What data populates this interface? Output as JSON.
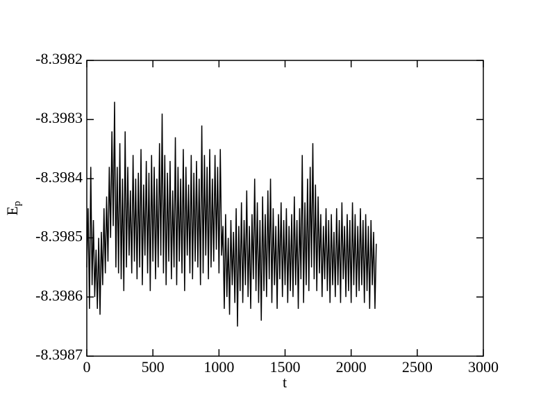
{
  "chart_data": {
    "type": "line",
    "xlabel": "t",
    "ylabel": "E",
    "ylabel_subscript": "p",
    "color": "#000000",
    "xlim": [
      0,
      3000
    ],
    "xticks": [
      0,
      500,
      1000,
      1500,
      2000,
      2500,
      3000
    ],
    "ylim": [
      -8.3987,
      -8.3982
    ],
    "yticks": [
      -8.3987,
      -8.3986,
      -8.3985,
      -8.3984,
      -8.3983,
      -8.3982
    ],
    "grid": false,
    "x": [
      0,
      10,
      20,
      30,
      40,
      50,
      60,
      70,
      80,
      90,
      100,
      110,
      120,
      130,
      140,
      150,
      160,
      170,
      180,
      190,
      200,
      210,
      220,
      230,
      240,
      250,
      260,
      270,
      280,
      290,
      300,
      310,
      320,
      330,
      340,
      350,
      360,
      370,
      380,
      390,
      400,
      410,
      420,
      430,
      440,
      450,
      460,
      470,
      480,
      490,
      500,
      510,
      520,
      530,
      540,
      550,
      560,
      570,
      580,
      590,
      600,
      610,
      620,
      630,
      640,
      650,
      660,
      670,
      680,
      690,
      700,
      710,
      720,
      730,
      740,
      750,
      760,
      770,
      780,
      790,
      800,
      810,
      820,
      830,
      840,
      850,
      860,
      870,
      880,
      890,
      900,
      910,
      920,
      930,
      940,
      950,
      960,
      970,
      980,
      990,
      1000,
      1010,
      1020,
      1030,
      1040,
      1050,
      1060,
      1070,
      1080,
      1090,
      1100,
      1110,
      1120,
      1130,
      1140,
      1150,
      1160,
      1170,
      1180,
      1190,
      1200,
      1210,
      1220,
      1230,
      1240,
      1250,
      1260,
      1270,
      1280,
      1290,
      1300,
      1310,
      1320,
      1330,
      1340,
      1350,
      1360,
      1370,
      1380,
      1390,
      1400,
      1410,
      1420,
      1430,
      1440,
      1450,
      1460,
      1470,
      1480,
      1490,
      1500,
      1510,
      1520,
      1530,
      1540,
      1550,
      1560,
      1570,
      1580,
      1590,
      1600,
      1610,
      1620,
      1630,
      1640,
      1650,
      1660,
      1670,
      1680,
      1690,
      1700,
      1710,
      1720,
      1730,
      1740,
      1750,
      1760,
      1770,
      1780,
      1790,
      1800,
      1810,
      1820,
      1830,
      1840,
      1850,
      1860,
      1870,
      1880,
      1890,
      1900,
      1910,
      1920,
      1930,
      1940,
      1950,
      1960,
      1970,
      1980,
      1990,
      2000,
      2010,
      2020,
      2030,
      2040,
      2050,
      2060,
      2070,
      2080,
      2090,
      2100,
      2110,
      2120,
      2130,
      2140,
      2150,
      2160,
      2170,
      2180,
      2190
    ],
    "values": [
      -8.39855,
      -8.39845,
      -8.39862,
      -8.39838,
      -8.39858,
      -8.39847,
      -8.3986,
      -8.39852,
      -8.39862,
      -8.3985,
      -8.39863,
      -8.39849,
      -8.39858,
      -8.39845,
      -8.39856,
      -8.39843,
      -8.39854,
      -8.39838,
      -8.3985,
      -8.39832,
      -8.39848,
      -8.39827,
      -8.39855,
      -8.39838,
      -8.39856,
      -8.39834,
      -8.39857,
      -8.3984,
      -8.39859,
      -8.39832,
      -8.39855,
      -8.39838,
      -8.39853,
      -8.39842,
      -8.39856,
      -8.39836,
      -8.39854,
      -8.3984,
      -8.39857,
      -8.39839,
      -8.39855,
      -8.39835,
      -8.39858,
      -8.39841,
      -8.39853,
      -8.39837,
      -8.39856,
      -8.39839,
      -8.39859,
      -8.39836,
      -8.39854,
      -8.39838,
      -8.39857,
      -8.3984,
      -8.39855,
      -8.39834,
      -8.39853,
      -8.39829,
      -8.39856,
      -8.39836,
      -8.39858,
      -8.39839,
      -8.39854,
      -8.39837,
      -8.39857,
      -8.39842,
      -8.39855,
      -8.39833,
      -8.39858,
      -8.39838,
      -8.39854,
      -8.3984,
      -8.39856,
      -8.39835,
      -8.39859,
      -8.39838,
      -8.39853,
      -8.39841,
      -8.39856,
      -8.39836,
      -8.39857,
      -8.39839,
      -8.39854,
      -8.39837,
      -8.39855,
      -8.3984,
      -8.39858,
      -8.39831,
      -8.39856,
      -8.39836,
      -8.39853,
      -8.39838,
      -8.39857,
      -8.39835,
      -8.39855,
      -8.3984,
      -8.39854,
      -8.39836,
      -8.39852,
      -8.39838,
      -8.39856,
      -8.39835,
      -8.39853,
      -8.39848,
      -8.39862,
      -8.39846,
      -8.3986,
      -8.3985,
      -8.39863,
      -8.39847,
      -8.39858,
      -8.39849,
      -8.39861,
      -8.39845,
      -8.39865,
      -8.39848,
      -8.39859,
      -8.39844,
      -8.39861,
      -8.39847,
      -8.39858,
      -8.39842,
      -8.3986,
      -8.39848,
      -8.39862,
      -8.39846,
      -8.39857,
      -8.3984,
      -8.39859,
      -8.39844,
      -8.39861,
      -8.39847,
      -8.39864,
      -8.39843,
      -8.39859,
      -8.39846,
      -8.3986,
      -8.39842,
      -8.39857,
      -8.3984,
      -8.39861,
      -8.39845,
      -8.39858,
      -8.39848,
      -8.39862,
      -8.39846,
      -8.39857,
      -8.39844,
      -8.3986,
      -8.39847,
      -8.39858,
      -8.39845,
      -8.39861,
      -8.39848,
      -8.39859,
      -8.39846,
      -8.3986,
      -8.39843,
      -8.39858,
      -8.39847,
      -8.39862,
      -8.39845,
      -8.39857,
      -8.39836,
      -8.39861,
      -8.39844,
      -8.39858,
      -8.3984,
      -8.39859,
      -8.39838,
      -8.39855,
      -8.39834,
      -8.39857,
      -8.39841,
      -8.39859,
      -8.39843,
      -8.39856,
      -8.39846,
      -8.3986,
      -8.39848,
      -8.39857,
      -8.39845,
      -8.39859,
      -8.39847,
      -8.39861,
      -8.39846,
      -8.39858,
      -8.39849,
      -8.3986,
      -8.39845,
      -8.39858,
      -8.39847,
      -8.39861,
      -8.39844,
      -8.39857,
      -8.39848,
      -8.3986,
      -8.39846,
      -8.39859,
      -8.39847,
      -8.39861,
      -8.39844,
      -8.39858,
      -8.39846,
      -8.3986,
      -8.39848,
      -8.39859,
      -8.39845,
      -8.39858,
      -8.39847,
      -8.39861,
      -8.39846,
      -8.39859,
      -8.39848,
      -8.39862,
      -8.39847,
      -8.39858,
      -8.39849,
      -8.39862,
      -8.39851
    ]
  }
}
